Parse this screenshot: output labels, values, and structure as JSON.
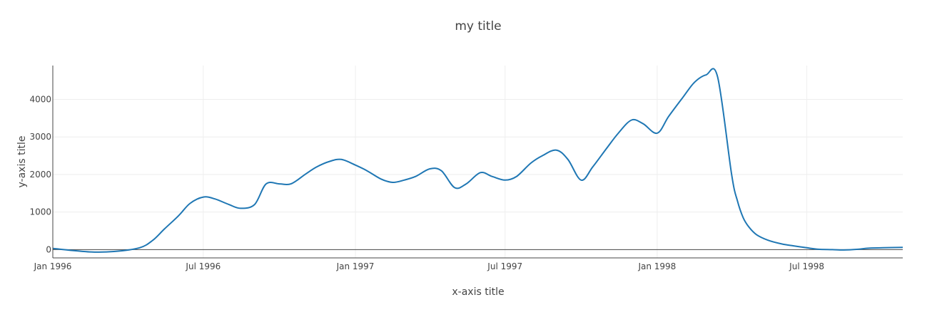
{
  "chart_data": {
    "type": "line",
    "title": "my title",
    "xlabel": "x-axis title",
    "ylabel": "y-axis title",
    "xlim": [
      "1996-01-01",
      "1998-10-25"
    ],
    "ylim": [
      -220,
      4900
    ],
    "x_ticks": [
      {
        "date": "1996-01-01",
        "label": "Jan 1996"
      },
      {
        "date": "1996-07-01",
        "label": "Jul 1996"
      },
      {
        "date": "1997-01-01",
        "label": "Jan 1997"
      },
      {
        "date": "1997-07-01",
        "label": "Jul 1997"
      },
      {
        "date": "1998-01-01",
        "label": "Jan 1998"
      },
      {
        "date": "1998-07-01",
        "label": "Jul 1998"
      }
    ],
    "y_ticks": [
      0,
      1000,
      2000,
      3000,
      4000
    ],
    "grid": true,
    "series": [
      {
        "color": "#1f77b4",
        "x": [
          "1996-01-01",
          "1996-02-15",
          "1996-03-15",
          "1996-04-15",
          "1996-05-01",
          "1996-05-15",
          "1996-06-01",
          "1996-06-15",
          "1996-07-01",
          "1996-07-15",
          "1996-08-01",
          "1996-08-15",
          "1996-09-01",
          "1996-09-15",
          "1996-10-01",
          "1996-10-15",
          "1996-11-01",
          "1996-11-15",
          "1996-12-01",
          "1996-12-15",
          "1997-01-01",
          "1997-01-15",
          "1997-02-01",
          "1997-02-15",
          "1997-03-01",
          "1997-03-15",
          "1997-04-01",
          "1997-04-15",
          "1997-05-01",
          "1997-05-15",
          "1997-06-01",
          "1997-06-15",
          "1997-07-01",
          "1997-07-15",
          "1997-08-01",
          "1997-08-15",
          "1997-09-01",
          "1997-09-15",
          "1997-10-01",
          "1997-10-15",
          "1997-11-01",
          "1997-11-15",
          "1997-12-01",
          "1997-12-15",
          "1998-01-01",
          "1998-01-15",
          "1998-02-01",
          "1998-02-15",
          "1998-03-01",
          "1998-03-15",
          "1998-04-01",
          "1998-04-08",
          "1998-04-15",
          "1998-04-22",
          "1998-05-01",
          "1998-05-15",
          "1998-06-01",
          "1998-06-15",
          "1998-07-01",
          "1998-07-15",
          "1998-08-01",
          "1998-08-15",
          "1998-09-01",
          "1998-09-15",
          "1998-10-01",
          "1998-10-25"
        ],
        "y": [
          30,
          -60,
          -50,
          50,
          250,
          550,
          900,
          1230,
          1400,
          1350,
          1200,
          1100,
          1200,
          1750,
          1750,
          1750,
          2000,
          2200,
          2350,
          2400,
          2250,
          2100,
          1880,
          1790,
          1850,
          1950,
          2150,
          2100,
          1650,
          1750,
          2050,
          1950,
          1850,
          1950,
          2300,
          2500,
          2650,
          2400,
          1850,
          2200,
          2700,
          3100,
          3450,
          3350,
          3100,
          3550,
          4050,
          4450,
          4650,
          4600,
          2000,
          1300,
          850,
          600,
          400,
          250,
          150,
          100,
          50,
          10,
          0,
          -10,
          10,
          40,
          50,
          60
        ]
      }
    ]
  }
}
